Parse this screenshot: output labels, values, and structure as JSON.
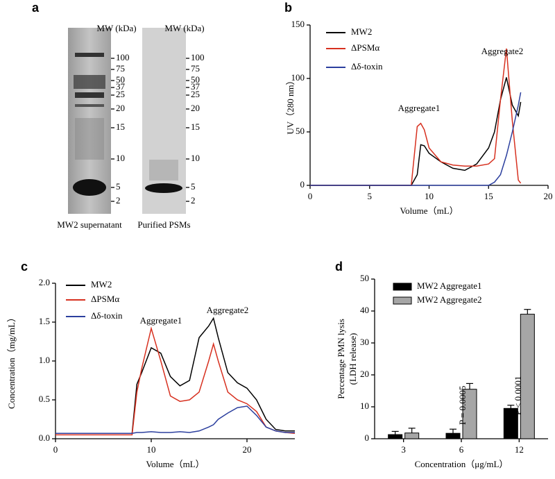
{
  "chart_data": [
    {
      "type": "gel",
      "panel": "a",
      "lanes": [
        {
          "label": "MW2 supernatant",
          "axis_title": "MW (kDa)",
          "markers": [
            100,
            75,
            50,
            37,
            25,
            20,
            15,
            10,
            5,
            2
          ]
        },
        {
          "label": "Purified PSMs",
          "axis_title": "MW (kDa)",
          "markers": [
            100,
            75,
            50,
            37,
            25,
            20,
            15,
            10,
            5,
            2
          ]
        }
      ]
    },
    {
      "type": "line",
      "panel": "b",
      "xlabel": "Volume（mL）",
      "ylabel": "UV（280 nm）",
      "annotations": [
        "Aggregate1",
        "Aggregate2"
      ],
      "x": [
        0,
        1,
        2,
        3,
        4,
        5,
        6,
        7,
        8,
        8.5,
        9,
        9.3,
        9.6,
        10,
        11,
        12,
        13,
        14,
        15,
        15.5,
        16,
        16.5,
        17,
        17.5,
        17.7
      ],
      "series": [
        {
          "name": "MW2",
          "color": "#000000",
          "values": [
            0,
            0,
            0,
            0,
            0,
            0,
            0,
            0,
            0,
            0,
            10,
            38,
            37,
            30,
            22,
            16,
            14,
            20,
            35,
            50,
            80,
            101,
            75,
            65,
            78
          ]
        },
        {
          "name": "ΔPSMα",
          "color": "#d7301f",
          "values": [
            0,
            0,
            0,
            0,
            0,
            0,
            0,
            0,
            0,
            0,
            55,
            58,
            52,
            35,
            22,
            19,
            18,
            18,
            20,
            25,
            80,
            128,
            60,
            5,
            2
          ]
        },
        {
          "name": "Δδ-toxin",
          "color": "#2b3f9e",
          "values": [
            0,
            0,
            0,
            0,
            0,
            0,
            0,
            0,
            0,
            0,
            0,
            0,
            0,
            0,
            0,
            0,
            0,
            0,
            0,
            3,
            10,
            28,
            50,
            75,
            87
          ]
        }
      ],
      "xlim": [
        0,
        20
      ],
      "xticks": [
        0,
        5,
        10,
        15,
        20
      ],
      "ylim": [
        0,
        150
      ],
      "yticks": [
        0,
        50,
        100,
        150
      ]
    },
    {
      "type": "line",
      "panel": "c",
      "xlabel": "Volume（mL）",
      "ylabel": "Concentration（mg/mL）",
      "annotations": [
        "Aggregate1",
        "Aggregate2"
      ],
      "x": [
        0,
        2,
        4,
        6,
        8,
        8.5,
        9,
        10,
        11,
        12,
        13,
        14,
        15,
        16,
        16.5,
        17,
        18,
        19,
        20,
        21,
        22,
        23,
        24,
        25
      ],
      "series": [
        {
          "name": "MW2",
          "color": "#000000",
          "values": [
            0.07,
            0.07,
            0.07,
            0.07,
            0.07,
            0.7,
            0.85,
            1.17,
            1.1,
            0.8,
            0.68,
            0.75,
            1.3,
            1.45,
            1.55,
            1.3,
            0.85,
            0.72,
            0.65,
            0.5,
            0.25,
            0.12,
            0.1,
            0.1
          ]
        },
        {
          "name": "ΔPSMα",
          "color": "#d7301f",
          "values": [
            0.05,
            0.05,
            0.05,
            0.05,
            0.05,
            0.6,
            0.9,
            1.42,
            1.0,
            0.55,
            0.48,
            0.5,
            0.6,
            1.0,
            1.22,
            1.0,
            0.6,
            0.5,
            0.45,
            0.35,
            0.15,
            0.1,
            0.08,
            0.07
          ]
        },
        {
          "name": "Δδ-toxin",
          "color": "#2b3f9e",
          "values": [
            0.07,
            0.07,
            0.07,
            0.07,
            0.07,
            0.08,
            0.08,
            0.09,
            0.08,
            0.08,
            0.09,
            0.08,
            0.1,
            0.15,
            0.18,
            0.25,
            0.33,
            0.4,
            0.42,
            0.3,
            0.15,
            0.1,
            0.08,
            0.08
          ]
        }
      ],
      "xlim": [
        0,
        25
      ],
      "xticks": [
        0,
        10,
        20
      ],
      "ylim": [
        0,
        2
      ],
      "yticks": [
        {
          "value": 0,
          "label": "0.0"
        },
        0.5,
        {
          "value": 1,
          "label": "1.0"
        },
        1.5,
        {
          "value": 2,
          "label": "2.0"
        }
      ]
    },
    {
      "type": "bar",
      "panel": "d",
      "xlabel": "Concentration（μg/mL）",
      "ylabel": [
        "Percentage PMN lysis",
        "(LDH release)"
      ],
      "annotations": [
        "P = 0.0005",
        "P < 0.0001"
      ],
      "categories": [
        "3",
        "6",
        "12"
      ],
      "series": [
        {
          "name": "MW2 Aggregate1",
          "color": "#000000",
          "values": [
            1.3,
            1.7,
            9.5
          ],
          "errors": [
            1,
            1.3,
            1
          ]
        },
        {
          "name": "MW2 Aggregate2",
          "color": "#a6a6a6",
          "values": [
            1.8,
            15.5,
            39
          ],
          "errors": [
            1.5,
            1.8,
            1.5
          ]
        }
      ],
      "ylim": [
        0,
        50
      ],
      "yticks": [
        0,
        10,
        20,
        30,
        40,
        50
      ]
    }
  ]
}
